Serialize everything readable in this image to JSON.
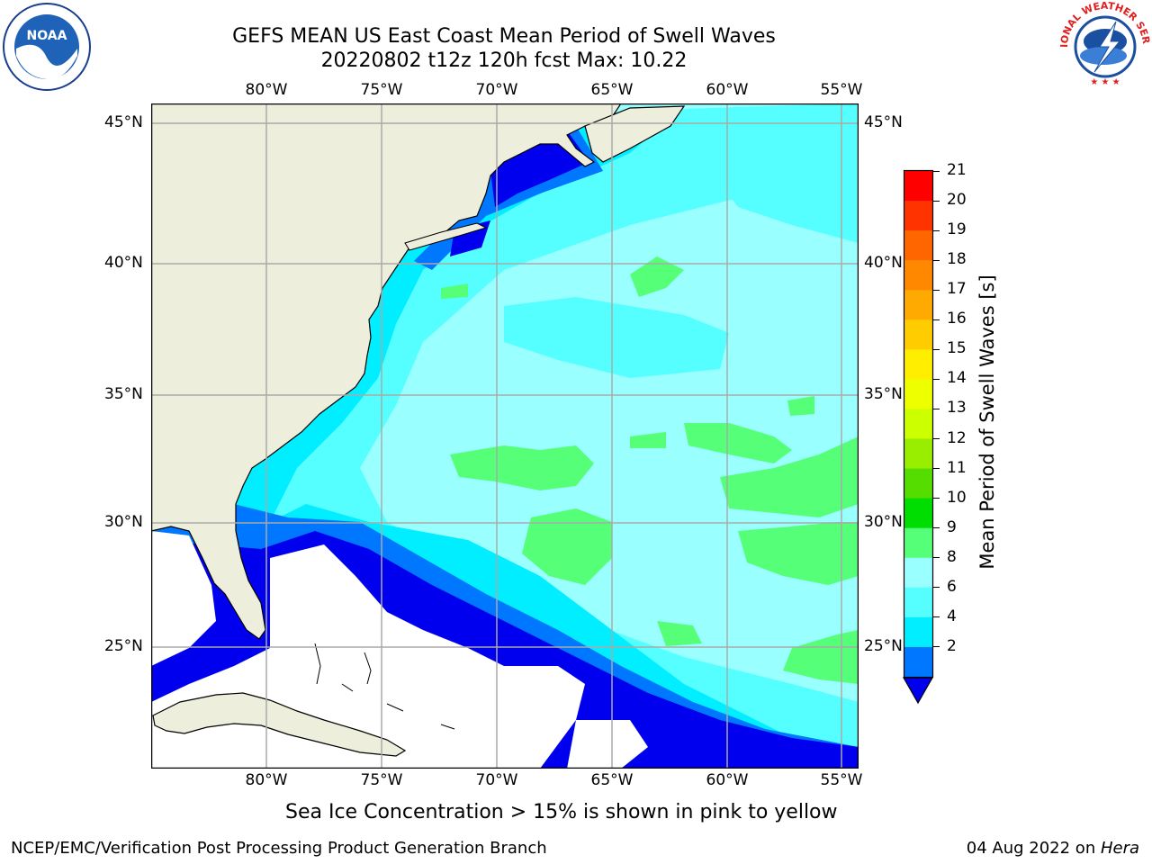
{
  "title": {
    "line1": "GEFS MEAN US East Coast Mean Period of Swell Waves",
    "line2": "20220802 t12z 120h fcst   Max: 10.22"
  },
  "logos": {
    "left": {
      "text": "NOAA"
    },
    "right": {
      "text": "NATIONAL WEATHER SERVICE"
    }
  },
  "map": {
    "lon_labels": [
      "80°W",
      "75°W",
      "70°W",
      "65°W",
      "60°W",
      "55°W"
    ],
    "lat_labels": [
      "45°N",
      "40°N",
      "35°N",
      "30°N",
      "25°N"
    ],
    "land_color": "#EEEEDD",
    "no_data_color": "#FFFFFF"
  },
  "colorbar": {
    "label": "Mean Period of Swell Waves [s]",
    "ticks": [
      "21",
      "20",
      "19",
      "18",
      "17",
      "16",
      "15",
      "14",
      "13",
      "12",
      "11",
      "10",
      "9",
      "8",
      "6",
      "4",
      "2"
    ],
    "colors": [
      "#FF0000",
      "#FF3300",
      "#FF6600",
      "#FF8800",
      "#FFAA00",
      "#FFCC00",
      "#FFEE00",
      "#EEFF00",
      "#CCFF00",
      "#99EE00",
      "#55DD00",
      "#00DD00",
      "#55FF77",
      "#99FFFF",
      "#55FFFF",
      "#00EEFF",
      "#0077FF"
    ],
    "under_color": "#0000EE"
  },
  "note": "Sea Ice Concentration > 15% is shown in pink to yellow",
  "footer": {
    "left": "NCEP/EMC/Verification Post Processing Product Generation Branch",
    "right_prefix": "04 Aug 2022 on ",
    "right_host": "Hera"
  }
}
